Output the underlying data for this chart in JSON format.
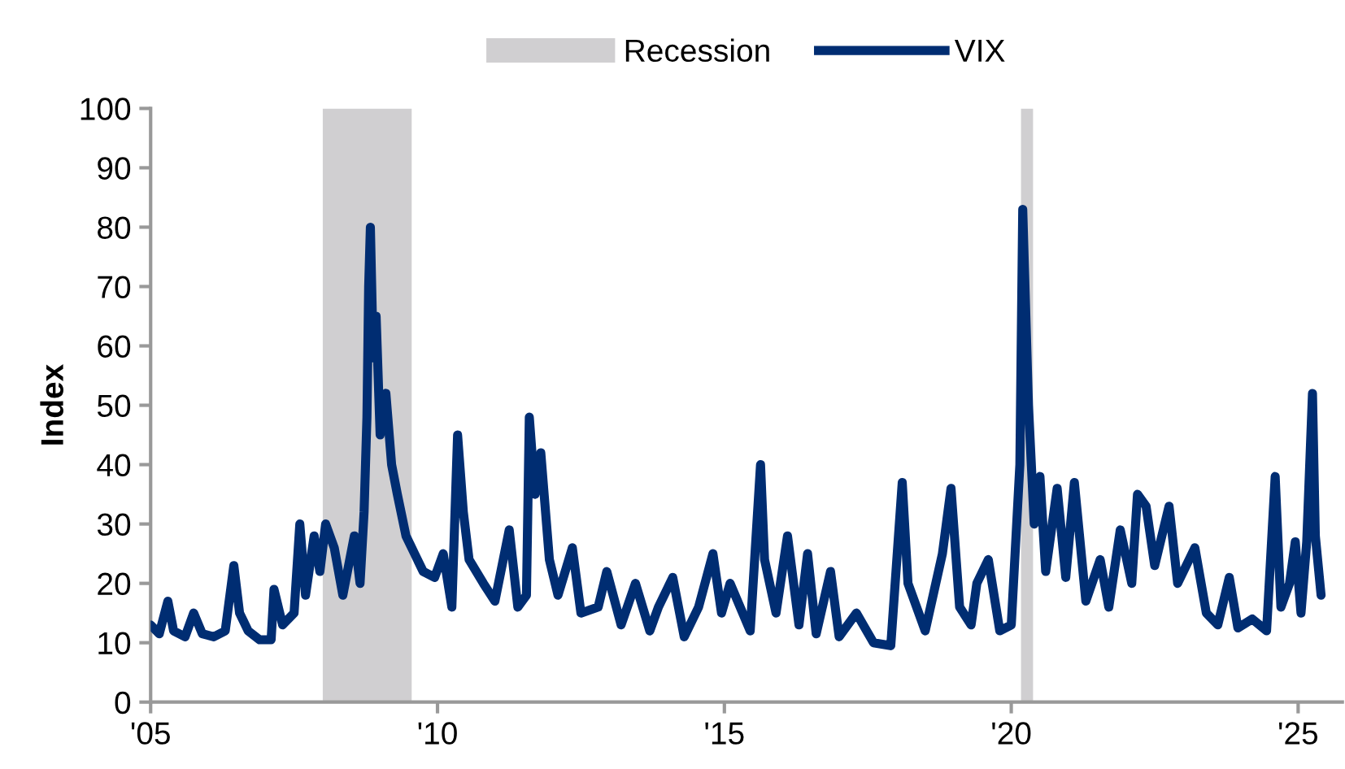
{
  "chart_data": {
    "type": "line",
    "ylabel": "Index",
    "x": [
      2005.0,
      2005.15,
      2005.3,
      2005.4,
      2005.6,
      2005.75,
      2005.9,
      2006.1,
      2006.3,
      2006.45,
      2006.55,
      2006.7,
      2006.9,
      2007.1,
      2007.15,
      2007.3,
      2007.5,
      2007.6,
      2007.7,
      2007.85,
      2007.95,
      2008.05,
      2008.2,
      2008.35,
      2008.55,
      2008.65,
      2008.72,
      2008.77,
      2008.8,
      2008.83,
      2008.88,
      2008.93,
      2009.0,
      2009.1,
      2009.2,
      2009.3,
      2009.45,
      2009.6,
      2009.75,
      2009.95,
      2010.1,
      2010.25,
      2010.35,
      2010.45,
      2010.55,
      2010.8,
      2011.0,
      2011.25,
      2011.4,
      2011.55,
      2011.6,
      2011.7,
      2011.8,
      2011.95,
      2012.1,
      2012.35,
      2012.5,
      2012.8,
      2012.95,
      2013.2,
      2013.45,
      2013.7,
      2013.85,
      2014.1,
      2014.3,
      2014.55,
      2014.8,
      2014.95,
      2015.1,
      2015.45,
      2015.63,
      2015.7,
      2015.9,
      2016.1,
      2016.3,
      2016.45,
      2016.6,
      2016.85,
      2017.0,
      2017.3,
      2017.6,
      2017.9,
      2018.1,
      2018.2,
      2018.5,
      2018.8,
      2018.95,
      2019.1,
      2019.3,
      2019.4,
      2019.6,
      2019.8,
      2020.0,
      2020.15,
      2020.2,
      2020.3,
      2020.4,
      2020.5,
      2020.6,
      2020.8,
      2020.95,
      2021.1,
      2021.3,
      2021.55,
      2021.7,
      2021.9,
      2022.1,
      2022.2,
      2022.35,
      2022.5,
      2022.75,
      2022.9,
      2023.2,
      2023.4,
      2023.6,
      2023.8,
      2023.95,
      2024.2,
      2024.45,
      2024.6,
      2024.7,
      2024.85,
      2024.95,
      2025.05,
      2025.15,
      2025.25,
      2025.3,
      2025.4
    ],
    "series": [
      {
        "name": "VIX",
        "color": "#002d72",
        "values": [
          13,
          11.5,
          17,
          12,
          11,
          15,
          11.5,
          11,
          12,
          23,
          15,
          12,
          10.5,
          10.5,
          19,
          13,
          15,
          30,
          18,
          28,
          22,
          30,
          26,
          18,
          28,
          20,
          32,
          48,
          70,
          80,
          58,
          65,
          45,
          52,
          40,
          35,
          28,
          25,
          22,
          21,
          25,
          16,
          45,
          32,
          24,
          20,
          17,
          29,
          16,
          18,
          48,
          35,
          42,
          24,
          18,
          26,
          15,
          16,
          22,
          13,
          20,
          12,
          16,
          21,
          11,
          16,
          25,
          15,
          20,
          12,
          40,
          24,
          15,
          28,
          13,
          25,
          11.5,
          22,
          11,
          15,
          10,
          9.5,
          37,
          20,
          12,
          25,
          36,
          16,
          13,
          20,
          24,
          12,
          13,
          40,
          83,
          50,
          30,
          38,
          22,
          36,
          21,
          37,
          17,
          24,
          16,
          29,
          20,
          35,
          33,
          23,
          33,
          20,
          26,
          15,
          13,
          21,
          12.5,
          14,
          12,
          38,
          16,
          20,
          27,
          15,
          27,
          52,
          28,
          18
        ]
      }
    ],
    "bands": [
      {
        "axis": "x",
        "from": 2008.0,
        "to": 2009.55,
        "label": "Recession",
        "color": "#d0cfd1"
      },
      {
        "axis": "x",
        "from": 2020.17,
        "to": 2020.38,
        "color": "#d0cfd1"
      }
    ],
    "xlim": [
      2005,
      2025.77
    ],
    "xticks": [
      {
        "value": 2005,
        "label": "'05"
      },
      {
        "value": 2010,
        "label": "'10"
      },
      {
        "value": 2015,
        "label": "'15"
      },
      {
        "value": 2020,
        "label": "'20"
      },
      {
        "value": 2025,
        "label": "'25"
      }
    ],
    "ylim": [
      0,
      100
    ],
    "yticks": [
      0,
      10,
      20,
      30,
      40,
      50,
      60,
      70,
      80,
      90,
      100
    ],
    "grid": false,
    "legend": "top",
    "line_style": "solid",
    "marker": "none"
  }
}
